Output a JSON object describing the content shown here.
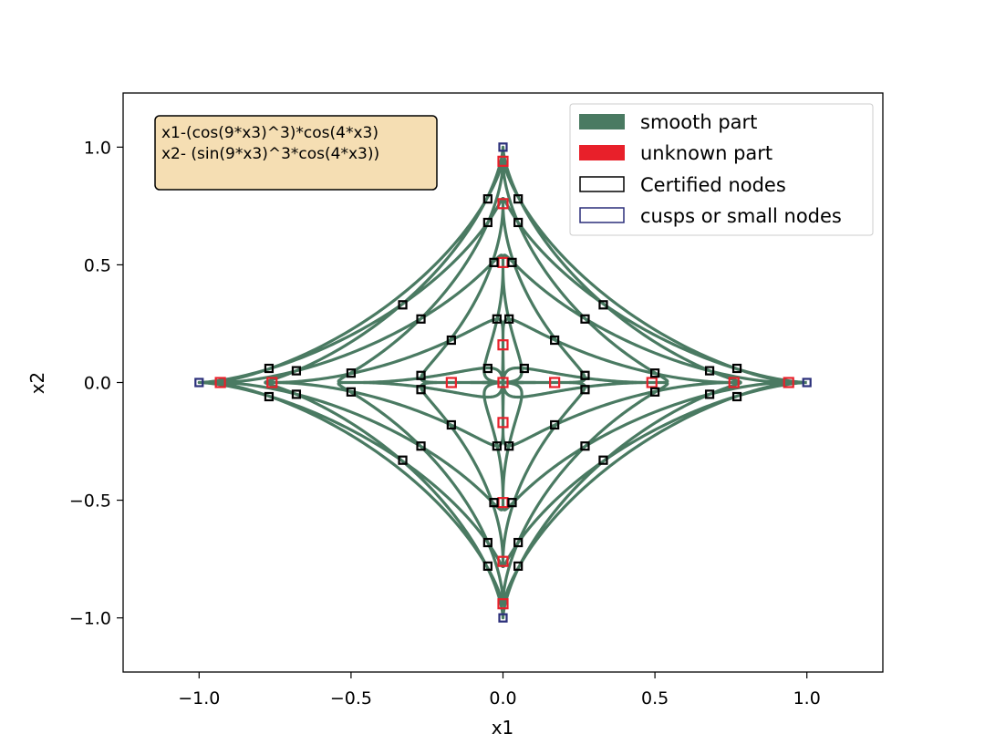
{
  "chart_data": {
    "type": "scatter",
    "title": "",
    "xlabel": "x1",
    "ylabel": "x2",
    "xlim": [
      -1.25,
      1.25
    ],
    "ylim": [
      -1.23,
      1.23
    ],
    "xticks": [
      -1.0,
      -0.5,
      0.0,
      0.5,
      1.0
    ],
    "xtick_labels": [
      "−1.0",
      "−0.5",
      "0.0",
      "0.5",
      "1.0"
    ],
    "yticks": [
      1.0,
      0.5,
      0.0,
      -0.5,
      -1.0
    ],
    "ytick_labels": [
      "1.0",
      "0.5",
      "0.0",
      "−0.5",
      "−1.0"
    ],
    "grid": false,
    "legend_position": "top-right",
    "annotation": {
      "lines": [
        "x1-(cos(9*x3)^3)*cos(4*x3)",
        "x2- (sin(9*x3)^3*cos(4*x3))"
      ],
      "position": "top-left",
      "facecolor": "#f5deb3"
    },
    "curve": {
      "x_expression": "cos(9*t)^3 * cos(4*t)",
      "y_expression": "sin(9*t)^3 * cos(4*t)",
      "t_range": [
        0,
        6.283185307
      ]
    },
    "series": [
      {
        "name": "smooth part",
        "kind": "curve",
        "color": "#4a7a62"
      },
      {
        "name": "unknown part",
        "kind": "boxes",
        "color": "#e8202a",
        "points": [
          [
            0.0,
            0.94
          ],
          [
            0.0,
            0.76
          ],
          [
            0.0,
            0.51
          ],
          [
            0.0,
            0.16
          ],
          [
            0.0,
            -0.17
          ],
          [
            0.0,
            -0.51
          ],
          [
            0.0,
            -0.76
          ],
          [
            0.0,
            -0.94
          ],
          [
            -0.93,
            0.0
          ],
          [
            -0.76,
            0.0
          ],
          [
            -0.17,
            0.0
          ],
          [
            0.0,
            0.0
          ],
          [
            0.17,
            0.0
          ],
          [
            0.49,
            0.0
          ],
          [
            0.76,
            0.0
          ],
          [
            0.94,
            0.0
          ]
        ]
      },
      {
        "name": "Certified nodes",
        "kind": "boxes",
        "color": "#000000",
        "points": [
          [
            -0.05,
            0.78
          ],
          [
            0.05,
            0.78
          ],
          [
            -0.05,
            0.68
          ],
          [
            0.05,
            0.68
          ],
          [
            -0.03,
            0.51
          ],
          [
            0.03,
            0.51
          ],
          [
            -0.33,
            0.33
          ],
          [
            0.33,
            0.33
          ],
          [
            -0.27,
            0.27
          ],
          [
            0.27,
            0.27
          ],
          [
            -0.02,
            0.27
          ],
          [
            0.02,
            0.27
          ],
          [
            -0.17,
            0.18
          ],
          [
            0.17,
            0.18
          ],
          [
            -0.77,
            0.06
          ],
          [
            0.77,
            0.06
          ],
          [
            -0.68,
            0.05
          ],
          [
            0.68,
            0.05
          ],
          [
            -0.5,
            0.04
          ],
          [
            0.5,
            0.04
          ],
          [
            -0.05,
            0.06
          ],
          [
            0.07,
            0.06
          ],
          [
            -0.27,
            0.03
          ],
          [
            0.27,
            0.03
          ],
          [
            -0.27,
            -0.03
          ],
          [
            0.27,
            -0.03
          ],
          [
            -0.5,
            -0.04
          ],
          [
            0.5,
            -0.04
          ],
          [
            -0.68,
            -0.05
          ],
          [
            0.68,
            -0.05
          ],
          [
            -0.77,
            -0.06
          ],
          [
            0.77,
            -0.06
          ],
          [
            -0.17,
            -0.18
          ],
          [
            0.17,
            -0.18
          ],
          [
            -0.02,
            -0.27
          ],
          [
            0.02,
            -0.27
          ],
          [
            -0.27,
            -0.27
          ],
          [
            0.27,
            -0.27
          ],
          [
            -0.33,
            -0.33
          ],
          [
            0.33,
            -0.33
          ],
          [
            -0.03,
            -0.51
          ],
          [
            0.03,
            -0.51
          ],
          [
            -0.05,
            -0.68
          ],
          [
            0.05,
            -0.68
          ],
          [
            -0.05,
            -0.78
          ],
          [
            0.05,
            -0.78
          ]
        ]
      },
      {
        "name": "cusps or small nodes",
        "kind": "boxes",
        "color": "#2b2f7a",
        "points": [
          [
            0.0,
            1.0
          ],
          [
            0.0,
            -1.0
          ],
          [
            -1.0,
            0.0
          ],
          [
            1.0,
            0.0
          ]
        ]
      }
    ]
  }
}
